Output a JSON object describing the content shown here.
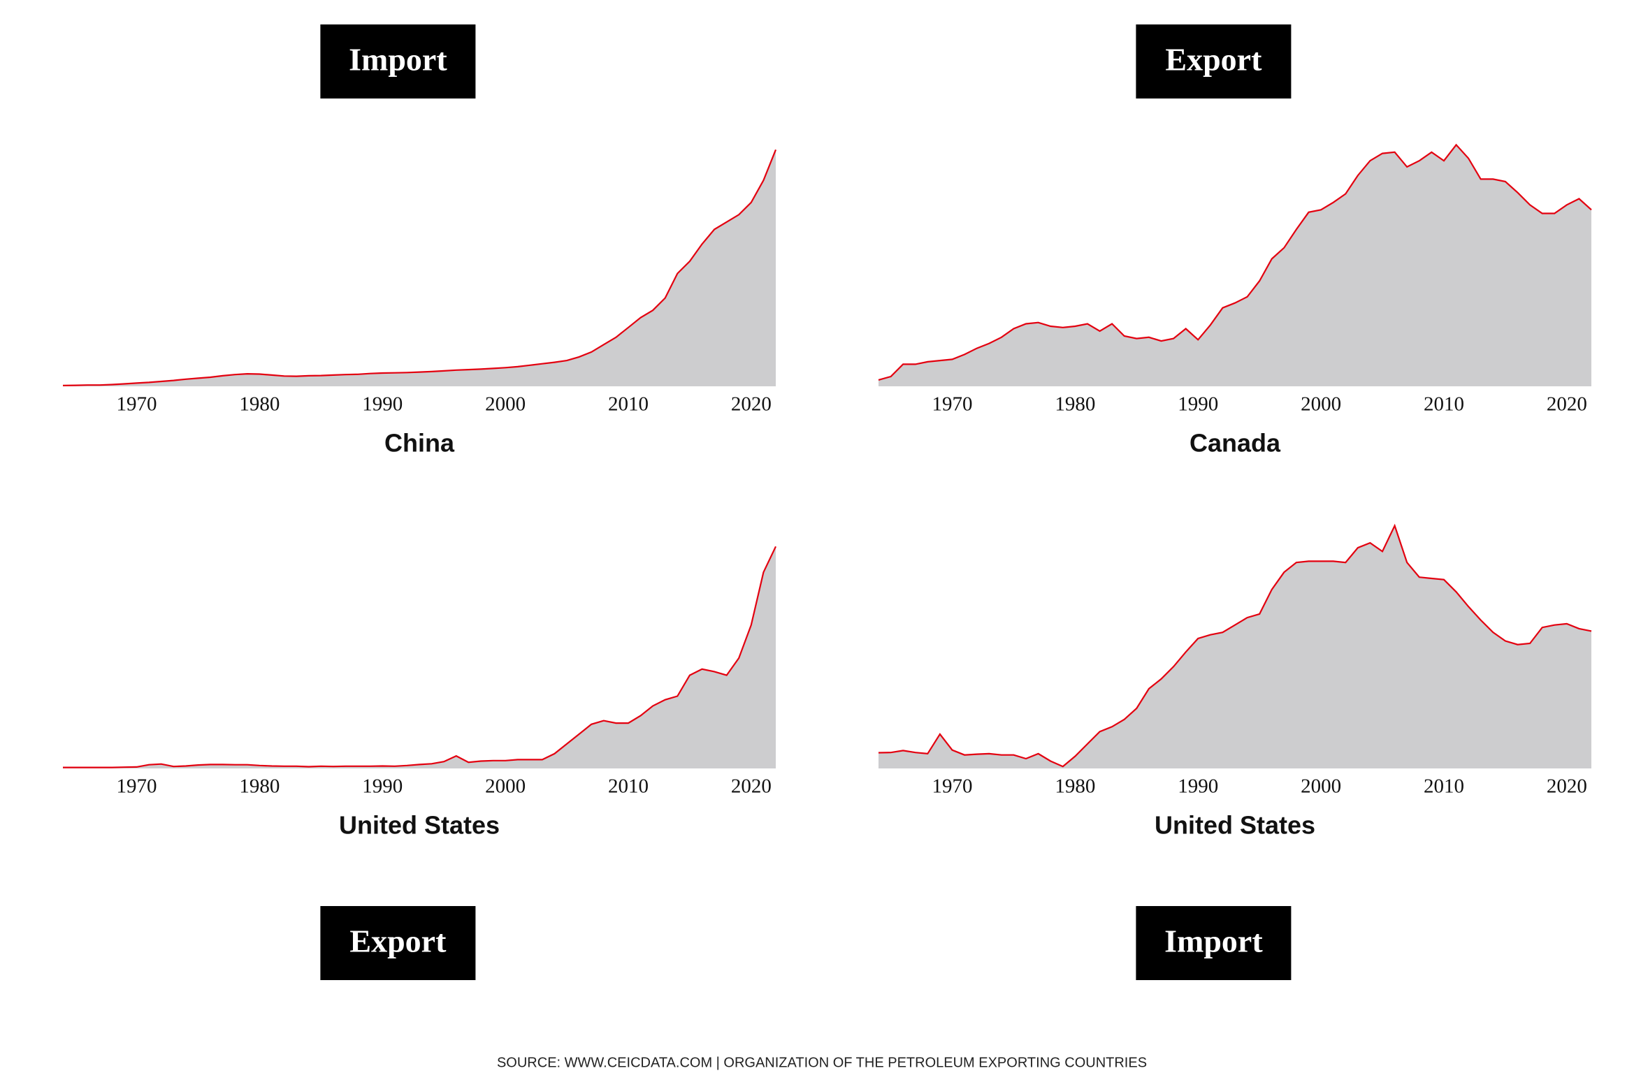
{
  "chart_data": [
    {
      "type": "area",
      "title": "Import",
      "title_position": "top",
      "xlabel": "China",
      "color": "#e3000f",
      "fill": "#cdcdcf",
      "x": [
        1964,
        1965,
        1966,
        1967,
        1968,
        1969,
        1970,
        1971,
        1972,
        1973,
        1974,
        1975,
        1976,
        1977,
        1978,
        1979,
        1980,
        1981,
        1982,
        1983,
        1984,
        1985,
        1986,
        1987,
        1988,
        1989,
        1990,
        1991,
        1992,
        1993,
        1994,
        1995,
        1996,
        1997,
        1998,
        1999,
        2000,
        2001,
        2002,
        2003,
        2004,
        2005,
        2006,
        2007,
        2008,
        2009,
        2010,
        2011,
        2012,
        2013,
        2014,
        2015,
        2016,
        2017,
        2018,
        2019,
        2020,
        2021,
        2022
      ],
      "values": [
        0.3,
        0.4,
        0.5,
        0.5,
        0.7,
        1.0,
        1.3,
        1.6,
        2.0,
        2.4,
        2.9,
        3.3,
        3.7,
        4.3,
        4.8,
        5.1,
        5.0,
        4.6,
        4.2,
        4.1,
        4.3,
        4.4,
        4.6,
        4.8,
        4.9,
        5.2,
        5.4,
        5.5,
        5.6,
        5.8,
        6.0,
        6.3,
        6.6,
        6.8,
        7.0,
        7.3,
        7.6,
        8.0,
        8.6,
        9.2,
        9.8,
        10.5,
        12,
        14,
        17,
        20,
        24,
        28,
        31,
        36,
        46,
        51,
        58,
        64,
        67,
        70,
        75,
        84,
        96.5
      ],
      "xlim": [
        1964,
        2022
      ],
      "xticks": [
        1970,
        1980,
        1990,
        2000,
        2010,
        2020
      ],
      "ylim": [
        0,
        100
      ]
    },
    {
      "type": "area",
      "title": "Export",
      "title_position": "top",
      "xlabel": "Canada",
      "color": "#e3000f",
      "fill": "#cdcdcf",
      "x": [
        1964,
        1965,
        1966,
        1967,
        1968,
        1969,
        1970,
        1971,
        1972,
        1973,
        1974,
        1975,
        1976,
        1977,
        1978,
        1979,
        1980,
        1981,
        1982,
        1983,
        1984,
        1985,
        1986,
        1987,
        1988,
        1989,
        1990,
        1991,
        1992,
        1993,
        1994,
        1995,
        1996,
        1997,
        1998,
        1999,
        2000,
        2001,
        2002,
        2003,
        2004,
        2005,
        2006,
        2007,
        2008,
        2009,
        2010,
        2011,
        2012,
        2013,
        2014,
        2015,
        2016,
        2017,
        2018,
        2019,
        2020,
        2021,
        2022
      ],
      "values": [
        2.6,
        4,
        9,
        9,
        10,
        10.5,
        11,
        13,
        15.5,
        17.5,
        20,
        23.5,
        25.5,
        26,
        24.5,
        24,
        24.5,
        25.5,
        22.5,
        25.5,
        20.5,
        19.5,
        20,
        18.5,
        19.5,
        23.5,
        19,
        25,
        32,
        34,
        36.5,
        43,
        52,
        56.5,
        64,
        71,
        72,
        75,
        78.5,
        86,
        92,
        95,
        95.5,
        89.5,
        92,
        95.5,
        92,
        98.5,
        93,
        84.5,
        84.5,
        83.5,
        79,
        74,
        70.5,
        70.5,
        74,
        76.5,
        72
      ],
      "xlim": [
        1964,
        2022
      ],
      "xticks": [
        1970,
        1980,
        1990,
        2000,
        2010,
        2020
      ],
      "ylim": [
        0,
        100
      ]
    },
    {
      "type": "area",
      "title": "Export",
      "title_position": "bottom",
      "xlabel": "United States",
      "color": "#e3000f",
      "fill": "#cdcdcf",
      "x": [
        1964,
        1965,
        1966,
        1967,
        1968,
        1969,
        1970,
        1971,
        1972,
        1973,
        1974,
        1975,
        1976,
        1977,
        1978,
        1979,
        1980,
        1981,
        1982,
        1983,
        1984,
        1985,
        1986,
        1987,
        1988,
        1989,
        1990,
        1991,
        1992,
        1993,
        1994,
        1995,
        1996,
        1997,
        1998,
        1999,
        2000,
        2001,
        2002,
        2003,
        2004,
        2005,
        2006,
        2007,
        2008,
        2009,
        2010,
        2011,
        2012,
        2013,
        2014,
        2015,
        2016,
        2017,
        2018,
        2019,
        2020,
        2021,
        2022
      ],
      "values": [
        0.4,
        0.4,
        0.4,
        0.4,
        0.4,
        0.5,
        0.6,
        1.5,
        1.8,
        0.8,
        1.0,
        1.4,
        1.6,
        1.6,
        1.5,
        1.5,
        1.2,
        1.0,
        0.9,
        0.9,
        0.7,
        0.9,
        0.8,
        0.9,
        0.9,
        0.9,
        1.0,
        0.9,
        1.2,
        1.6,
        1.9,
        2.8,
        5.1,
        2.5,
        3.0,
        3.2,
        3.2,
        3.6,
        3.6,
        3.6,
        6,
        10,
        14,
        18,
        19.5,
        18.5,
        18.5,
        21.5,
        25.5,
        28,
        29.5,
        38,
        40.5,
        39.5,
        38,
        45,
        58.5,
        80,
        90.5
      ],
      "xlim": [
        1964,
        2022
      ],
      "xticks": [
        1970,
        1980,
        1990,
        2000,
        2010,
        2020
      ],
      "ylim": [
        0,
        100
      ]
    },
    {
      "type": "area",
      "title": "Import",
      "title_position": "bottom",
      "xlabel": "United States",
      "color": "#e3000f",
      "fill": "#cdcdcf",
      "x": [
        1964,
        1965,
        1966,
        1967,
        1968,
        1969,
        1970,
        1971,
        1972,
        1973,
        1974,
        1975,
        1976,
        1977,
        1978,
        1979,
        1980,
        1981,
        1982,
        1983,
        1984,
        1985,
        1986,
        1987,
        1988,
        1989,
        1990,
        1991,
        1992,
        1993,
        1994,
        1995,
        1996,
        1997,
        1998,
        1999,
        2000,
        2001,
        2002,
        2003,
        2004,
        2005,
        2006,
        2007,
        2008,
        2009,
        2010,
        2011,
        2012,
        2013,
        2014,
        2015,
        2016,
        2017,
        2018,
        2019,
        2020,
        2021,
        2022
      ],
      "values": [
        6.4,
        6.5,
        7.3,
        6.5,
        6,
        14,
        7.5,
        5.5,
        5.8,
        6,
        5.5,
        5.5,
        4,
        6,
        3,
        0.8,
        5,
        10,
        15,
        17,
        20,
        24.5,
        32.5,
        36.5,
        41.5,
        47.5,
        53,
        54.5,
        55.5,
        58.5,
        61.5,
        63,
        73,
        80,
        84,
        84.5,
        84.5,
        84.5,
        84,
        90,
        92,
        88.5,
        99,
        84,
        78,
        77.5,
        77,
        72,
        66,
        60.5,
        55.5,
        52,
        50.5,
        51,
        57.5,
        58.5,
        59,
        57,
        56
      ],
      "xlim": [
        1964,
        2022
      ],
      "xticks": [
        1970,
        1980,
        1990,
        2000,
        2010,
        2020
      ],
      "ylim": [
        0,
        100
      ]
    }
  ],
  "source": "SOURCE: WWW.CEICDATA.COM | ORGANIZATION OF THE PETROLEUM EXPORTING COUNTRIES"
}
